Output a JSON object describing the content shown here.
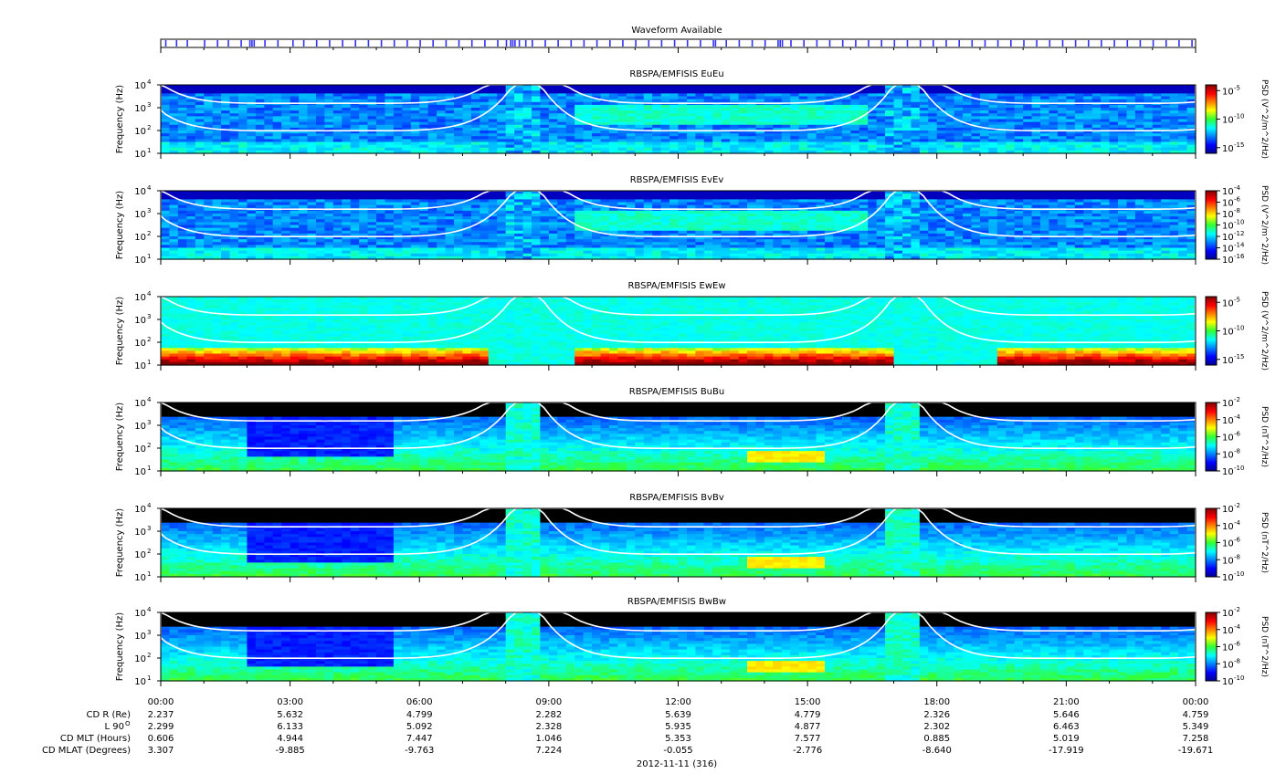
{
  "chart_data": {
    "type": "heatmap",
    "date_label": "2012-11-11 (316)",
    "x_ticks": [
      "00:00",
      "03:00",
      "06:00",
      "09:00",
      "12:00",
      "15:00",
      "18:00",
      "21:00",
      "00:00"
    ],
    "waveform_panel": {
      "title": "Waveform Available",
      "marks_hours": [
        0.1,
        0.35,
        0.6,
        1.0,
        1.3,
        1.55,
        1.85,
        2.05,
        2.1,
        2.15,
        2.4,
        2.7,
        3.05,
        3.3,
        3.6,
        3.9,
        4.2,
        4.5,
        4.8,
        5.1,
        5.4,
        5.7,
        6.0,
        6.3,
        6.6,
        6.9,
        7.2,
        7.5,
        7.8,
        8.0,
        8.1,
        8.15,
        8.2,
        8.3,
        8.45,
        8.6,
        8.9,
        9.2,
        9.5,
        9.8,
        10.1,
        10.4,
        10.7,
        11.0,
        11.3,
        11.6,
        11.9,
        12.2,
        12.5,
        12.8,
        12.85,
        13.1,
        13.4,
        13.7,
        14.0,
        14.3,
        14.35,
        14.4,
        14.6,
        14.9,
        15.2,
        15.5,
        15.8,
        16.1,
        16.4,
        16.7,
        17.0,
        17.3,
        17.6,
        17.9,
        18.2,
        18.5,
        18.8,
        19.1,
        19.4,
        19.7,
        20.0,
        20.3,
        20.6,
        20.9,
        21.2,
        21.5,
        21.8,
        22.1,
        22.4,
        22.7,
        23.0,
        23.3,
        23.6,
        23.9
      ]
    },
    "panels": [
      {
        "title": "RBSPA/EMFISIS  EuEu",
        "ylabel": "Frequency (Hz)",
        "y_ticks": [
          "10",
          "10",
          "10",
          "10"
        ],
        "y_exps": [
          "1",
          "2",
          "3",
          "4"
        ],
        "ylim": [
          10,
          10000
        ],
        "cbar_label": "PSD (V^2/m^2/Hz)",
        "cbar_ticks": [
          {
            "b": "10",
            "e": "-5"
          },
          {
            "b": "10",
            "e": "-10"
          },
          {
            "b": "10",
            "e": "-15"
          }
        ],
        "cbar_range": [
          -16,
          -4
        ],
        "style": "E"
      },
      {
        "title": "RBSPA/EMFISIS  EvEv",
        "ylabel": "Frequency (Hz)",
        "y_ticks": [
          "10",
          "10",
          "10",
          "10"
        ],
        "y_exps": [
          "1",
          "2",
          "3",
          "4"
        ],
        "ylim": [
          10,
          10000
        ],
        "cbar_label": "PSD (V^2/m^2/Hz)",
        "cbar_ticks": [
          {
            "b": "10",
            "e": "-4"
          },
          {
            "b": "10",
            "e": "-6"
          },
          {
            "b": "10",
            "e": "-8"
          },
          {
            "b": "10",
            "e": "-10"
          },
          {
            "b": "10",
            "e": "-12"
          },
          {
            "b": "10",
            "e": "-14"
          },
          {
            "b": "10",
            "e": "-16"
          }
        ],
        "cbar_range": [
          -16,
          -4
        ],
        "style": "E"
      },
      {
        "title": "RBSPA/EMFISIS  EwEw",
        "ylabel": "Frequency (Hz)",
        "y_ticks": [
          "10",
          "10",
          "10",
          "10"
        ],
        "y_exps": [
          "1",
          "2",
          "3",
          "4"
        ],
        "ylim": [
          10,
          10000
        ],
        "cbar_label": "PSD (V^2/m^2/Hz)",
        "cbar_ticks": [
          {
            "b": "10",
            "e": "-5"
          },
          {
            "b": "10",
            "e": "-10"
          },
          {
            "b": "10",
            "e": "-15"
          }
        ],
        "cbar_range": [
          -16,
          -4
        ],
        "style": "W"
      },
      {
        "title": "RBSPA/EMFISIS  BuBu",
        "ylabel": "Frequency (Hz)",
        "y_ticks": [
          "10",
          "10",
          "10",
          "10"
        ],
        "y_exps": [
          "1",
          "2",
          "3",
          "4"
        ],
        "ylim": [
          10,
          10000
        ],
        "cbar_label": "PSD (nT^2/Hz)",
        "cbar_ticks": [
          {
            "b": "10",
            "e": "-2"
          },
          {
            "b": "10",
            "e": "-4"
          },
          {
            "b": "10",
            "e": "-6"
          },
          {
            "b": "10",
            "e": "-8"
          },
          {
            "b": "10",
            "e": "-10"
          }
        ],
        "cbar_range": [
          -10,
          -2
        ],
        "style": "B"
      },
      {
        "title": "RBSPA/EMFISIS  BvBv",
        "ylabel": "Frequency (Hz)",
        "y_ticks": [
          "10",
          "10",
          "10",
          "10"
        ],
        "y_exps": [
          "1",
          "2",
          "3",
          "4"
        ],
        "ylim": [
          10,
          10000
        ],
        "cbar_label": "PSD (nT^2/Hz)",
        "cbar_ticks": [
          {
            "b": "10",
            "e": "-2"
          },
          {
            "b": "10",
            "e": "-4"
          },
          {
            "b": "10",
            "e": "-6"
          },
          {
            "b": "10",
            "e": "-8"
          },
          {
            "b": "10",
            "e": "-10"
          }
        ],
        "cbar_range": [
          -10,
          -2
        ],
        "style": "B"
      },
      {
        "title": "RBSPA/EMFISIS  BwBw",
        "ylabel": "Frequency (Hz)",
        "y_ticks": [
          "10",
          "10",
          "10",
          "10"
        ],
        "y_exps": [
          "1",
          "2",
          "3",
          "4"
        ],
        "ylim": [
          10,
          10000
        ],
        "cbar_label": "PSD (nT^2/Hz)",
        "cbar_ticks": [
          {
            "b": "10",
            "e": "-2"
          },
          {
            "b": "10",
            "e": "-4"
          },
          {
            "b": "10",
            "e": "-6"
          },
          {
            "b": "10",
            "e": "-8"
          },
          {
            "b": "10",
            "e": "-10"
          }
        ],
        "cbar_range": [
          -10,
          -2
        ],
        "style": "B"
      }
    ],
    "ephemeris": [
      {
        "label": "CD R (Re)",
        "values": [
          "2.237",
          "5.632",
          "4.799",
          "2.282",
          "5.639",
          "4.779",
          "2.326",
          "5.646",
          "4.759"
        ]
      },
      {
        "label": "L 90",
        "label_sup": "O",
        "values": [
          "2.299",
          "6.133",
          "5.092",
          "2.328",
          "5.935",
          "4.877",
          "2.302",
          "6.463",
          "5.349"
        ]
      },
      {
        "label": "CD MLT (Hours)",
        "values": [
          "0.606",
          "4.944",
          "7.447",
          "1.046",
          "5.353",
          "7.577",
          "0.885",
          "5.019",
          "7.258"
        ]
      },
      {
        "label": "CD MLAT (Degrees)",
        "values": [
          "3.307",
          "-9.885",
          "-9.763",
          "7.224",
          "-0.055",
          "-2.776",
          "-8.640",
          "-17.919",
          "-19.671"
        ]
      }
    ]
  }
}
